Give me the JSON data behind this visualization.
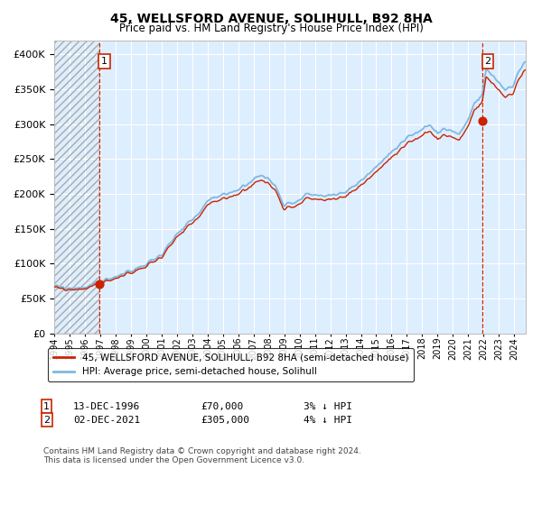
{
  "title": "45, WELLSFORD AVENUE, SOLIHULL, B92 8HA",
  "subtitle": "Price paid vs. HM Land Registry's House Price Index (HPI)",
  "sale1_date_label": "13-DEC-1996",
  "sale1_price": 70000,
  "sale1_price_label": "£70,000",
  "sale1_hpi_label": "3% ↓ HPI",
  "sale2_date_label": "02-DEC-2021",
  "sale2_price": 305000,
  "sale2_price_label": "£305,000",
  "sale2_hpi_label": "4% ↓ HPI",
  "legend_label1": "45, WELLSFORD AVENUE, SOLIHULL, B92 8HA (semi-detached house)",
  "legend_label2": "HPI: Average price, semi-detached house, Solihull",
  "footnote": "Contains HM Land Registry data © Crown copyright and database right 2024.\nThis data is licensed under the Open Government Licence v3.0.",
  "ylim_max": 420000,
  "hpi_color": "#7fb8e0",
  "price_color": "#cc2200",
  "bg_color": "#ddeeff",
  "grid_color": "#ffffff",
  "vline_color": "#cc2200",
  "dot_color": "#cc2200",
  "annotation_color": "#cc2200"
}
